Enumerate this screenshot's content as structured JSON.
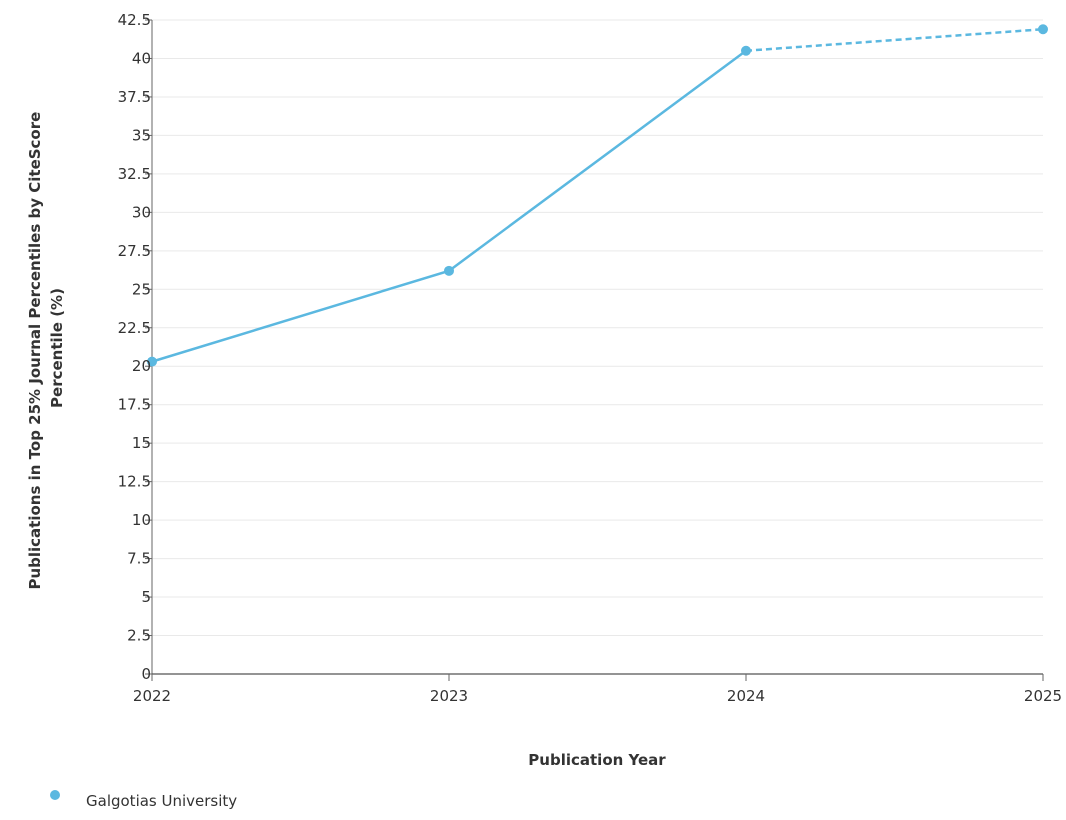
{
  "chart_data": {
    "type": "line",
    "x": [
      "2022",
      "2023",
      "2024",
      "2025"
    ],
    "series": [
      {
        "name": "Galgotias University",
        "values": [
          20.3,
          26.2,
          40.5,
          41.9
        ],
        "color": "#5bb8e0",
        "dashed_from_index": 2
      }
    ],
    "ylim": [
      0,
      42.5
    ],
    "y_ticks": [
      "0",
      "2.5",
      "5",
      "7.5",
      "10",
      "12.5",
      "15",
      "17.5",
      "20",
      "22.5",
      "25",
      "27.5",
      "30",
      "32.5",
      "35",
      "37.5",
      "40",
      "42.5"
    ],
    "xlabel": "Publication Year",
    "ylabel_lines": [
      "Publications in Top 25% Journal Percentiles by CiteScore",
      "Percentile (%)"
    ],
    "grid": true,
    "legend_position": "bottom-left"
  }
}
